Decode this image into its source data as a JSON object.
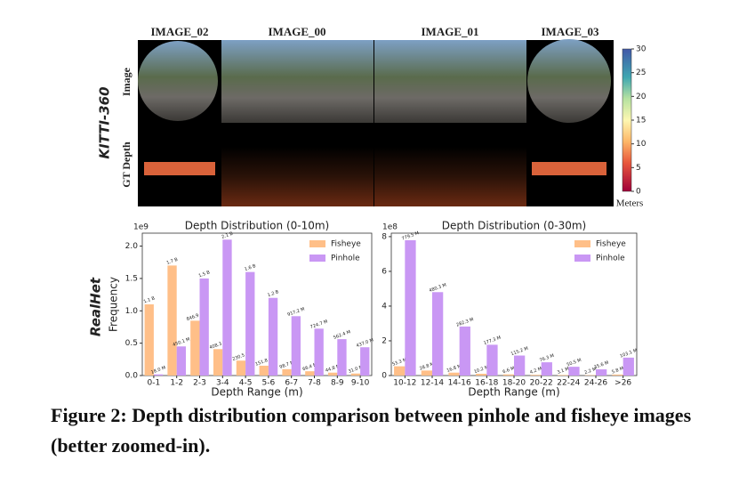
{
  "figure": {
    "columns": [
      "IMAGE_02",
      "IMAGE_00",
      "IMAGE_01",
      "IMAGE_03"
    ],
    "dataset": "KITTI-360",
    "rows": [
      "Image",
      "GT Depth"
    ],
    "colorbar": {
      "lim": [
        0,
        30
      ],
      "ticks": [
        0,
        5,
        10,
        15,
        20,
        25,
        30
      ],
      "label": "Meters"
    },
    "bottom_label": "RealHet"
  },
  "chart_data": [
    {
      "type": "bar",
      "title": "Depth Distribution (0-10m)",
      "scale_label": "1e9",
      "y_label": "Frequency",
      "x_label": "Depth Range (m)",
      "categories": [
        "0-1",
        "1-2",
        "2-3",
        "3-4",
        "4-5",
        "5-6",
        "6-7",
        "7-8",
        "8-9",
        "9-10"
      ],
      "series": [
        {
          "name": "Fisheye",
          "color": "#ffbf88",
          "values": [
            1.1,
            1.7,
            0.8469,
            0.4083,
            0.2305,
            0.1518,
            0.0987,
            0.0664,
            0.0448,
            0.031
          ],
          "value_labels": [
            "1.1 B",
            "1.7 B",
            "846.9 M",
            "408.3 M",
            "230.5 M",
            "151.8 M",
            "98.7 M",
            "66.4 M",
            "44.8 M",
            "31.0 M"
          ]
        },
        {
          "name": "Pinhole",
          "color": "#c997f4",
          "values": [
            0.018,
            0.4501,
            1.5,
            2.1,
            1.6,
            1.2,
            0.9172,
            0.7247,
            0.5624,
            0.437
          ],
          "value_labels": [
            "18.0 M",
            "450.1 M",
            "1.5 B",
            "2.1 B",
            "1.6 B",
            "1.2 B",
            "917.2 M",
            "724.7 M",
            "562.4 M",
            "437.0 M"
          ]
        }
      ],
      "ylim": [
        0,
        2.2
      ],
      "yticks": [
        {
          "value": 0,
          "label": "0.0"
        },
        0.5,
        {
          "value": 1,
          "label": "1.0"
        },
        1.5,
        {
          "value": 2,
          "label": "2.0"
        }
      ],
      "legend": "upper-right"
    },
    {
      "type": "bar",
      "title": "Depth Distribution (0-30m)",
      "scale_label": "1e8",
      "x_label": "Depth Range (m)",
      "categories": [
        "10-12",
        "12-14",
        "14-16",
        "16-18",
        "18-20",
        "20-22",
        "22-24",
        "24-26",
        ">26"
      ],
      "series": [
        {
          "name": "Fisheye",
          "color": "#ffbf88",
          "values": [
            0.533,
            0.288,
            0.168,
            0.102,
            0.066,
            0.042,
            0.031,
            0.022,
            0.058
          ],
          "value_labels": [
            "53.3 M",
            "28.8 M",
            "16.8 M",
            "10.2 M",
            "6.6 M",
            "4.2 M",
            "3.1 M",
            "2.2 M",
            "5.8 M"
          ]
        },
        {
          "name": "Pinhole",
          "color": "#c997f4",
          "values": [
            7.795,
            4.803,
            2.823,
            1.773,
            1.152,
            0.763,
            0.505,
            0.356,
            1.031
          ],
          "value_labels": [
            "779.5 M",
            "480.3 M",
            "282.3 M",
            "177.3 M",
            "115.2 M",
            "76.3 M",
            "50.5 M",
            "35.6 M",
            "103.1 M"
          ]
        }
      ],
      "ylim": [
        0,
        8.2
      ],
      "yticks": [
        0,
        2,
        4,
        6,
        8
      ],
      "legend": "upper-right"
    }
  ],
  "caption": "Figure 2: Depth distribution comparison between pinhole and fisheye images (better zoomed-in)."
}
